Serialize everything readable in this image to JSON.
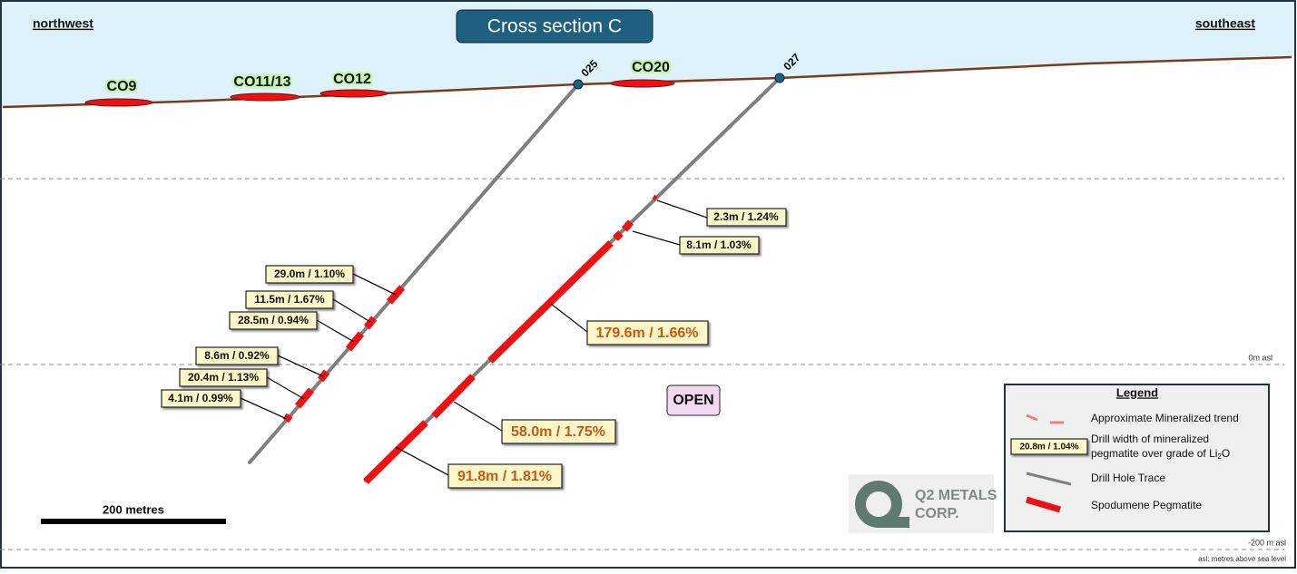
{
  "header": {
    "title": "Cross section C",
    "left_direction": "northwest",
    "right_direction": "southeast"
  },
  "outcrops": [
    "CO9",
    "CO11/13",
    "CO12",
    "CO20"
  ],
  "drill_holes": [
    {
      "id": "025",
      "intercepts": [
        "29.0m / 1.10%",
        "11.5m / 1.67%",
        "28.5m / 0.94%",
        "8.6m / 0.92%",
        "20.4m / 1.13%",
        "4.1m / 0.99%"
      ]
    },
    {
      "id": "027",
      "intercepts": [
        "2.3m / 1.24%",
        "8.1m / 1.03%",
        "179.6m / 1.66%",
        "58.0m / 1.75%",
        "91.8m / 1.81%"
      ]
    }
  ],
  "annotations": {
    "open": "OPEN"
  },
  "elevations": {
    "zero": "0m asl",
    "minus_200": "-200 m asl",
    "note": "asl: metres above sea level"
  },
  "scale_bar": "200 metres",
  "legend": {
    "title": "Legend",
    "items": [
      {
        "label": "Approximate Mineralized trend"
      },
      {
        "sample": "20.8m / 1.04%",
        "label_lines": [
          "Drill width of mineralized",
          "pegmatite over grade of Li"
        ],
        "subscript": "2",
        "suffix": "O"
      },
      {
        "label": "Drill Hole Trace"
      },
      {
        "label": "Spodumene Pegmatite"
      }
    ]
  },
  "logo": {
    "line1": "Q2 METALS",
    "line2": "CORP."
  }
}
